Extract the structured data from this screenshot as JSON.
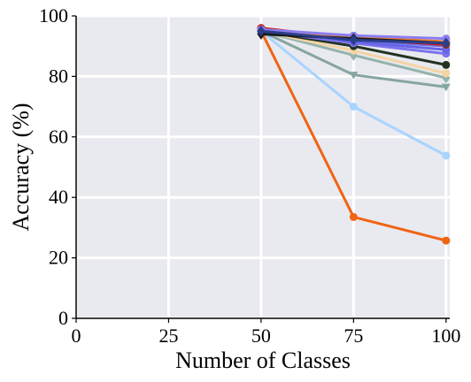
{
  "chart_data": {
    "type": "line",
    "title": "",
    "xlabel": "Number of Classes",
    "ylabel": "Accuracy (%)",
    "xlim": [
      0,
      101
    ],
    "ylim": [
      0,
      100
    ],
    "xticks": [
      0,
      25,
      50,
      75,
      100
    ],
    "yticks": [
      0,
      20,
      40,
      60,
      80,
      100
    ],
    "grid": true,
    "background": "#e9e9f0",
    "x": [
      50,
      75,
      100
    ],
    "series": [
      {
        "color": "#f06414",
        "marker": "circle",
        "values": [
          95,
          33.5,
          25.7
        ]
      },
      {
        "color": "#a8d4ff",
        "marker": "circle",
        "values": [
          95,
          70,
          53.8
        ]
      },
      {
        "color": "#86a6a0",
        "marker": "triangle-down",
        "values": [
          95,
          80.5,
          76.5
        ]
      },
      {
        "color": "#93b4ab",
        "marker": "diamond",
        "values": [
          95,
          87,
          79.5
        ]
      },
      {
        "color": "#f5d4a2",
        "marker": "circle",
        "values": [
          95,
          88.5,
          81
        ]
      },
      {
        "color": "#223322",
        "marker": "circle",
        "values": [
          95,
          90,
          83.8
        ]
      },
      {
        "color": "#7c72ec",
        "marker": "circle",
        "values": [
          95,
          91,
          87.5
        ]
      },
      {
        "color": "#6464e6",
        "marker": "circle",
        "values": [
          95.5,
          91.5,
          88.8
        ]
      },
      {
        "color": "#6e6ee0",
        "marker": "diamond",
        "values": [
          95.5,
          92,
          90
        ]
      },
      {
        "color": "#cc1a1a",
        "marker": "circle",
        "values": [
          96,
          92.5,
          90.5
        ]
      },
      {
        "color": "#9a9ad8",
        "marker": "diamond",
        "values": [
          95,
          92.5,
          91.5
        ]
      },
      {
        "color": "#33663f",
        "marker": "circle",
        "values": [
          95.5,
          93,
          91
        ]
      },
      {
        "color": "#ef7d2a",
        "marker": "circle",
        "values": [
          95.5,
          93,
          91.5
        ]
      },
      {
        "color": "#8a7ef0",
        "marker": "circle",
        "values": [
          95.5,
          93.5,
          92.5
        ]
      },
      {
        "color": "#1a1a1a",
        "marker": "diamond",
        "values": [
          94,
          92.5,
          91
        ]
      },
      {
        "color": "#2a3e8a",
        "marker": "diamond",
        "values": [
          95,
          92,
          91
        ]
      }
    ]
  }
}
